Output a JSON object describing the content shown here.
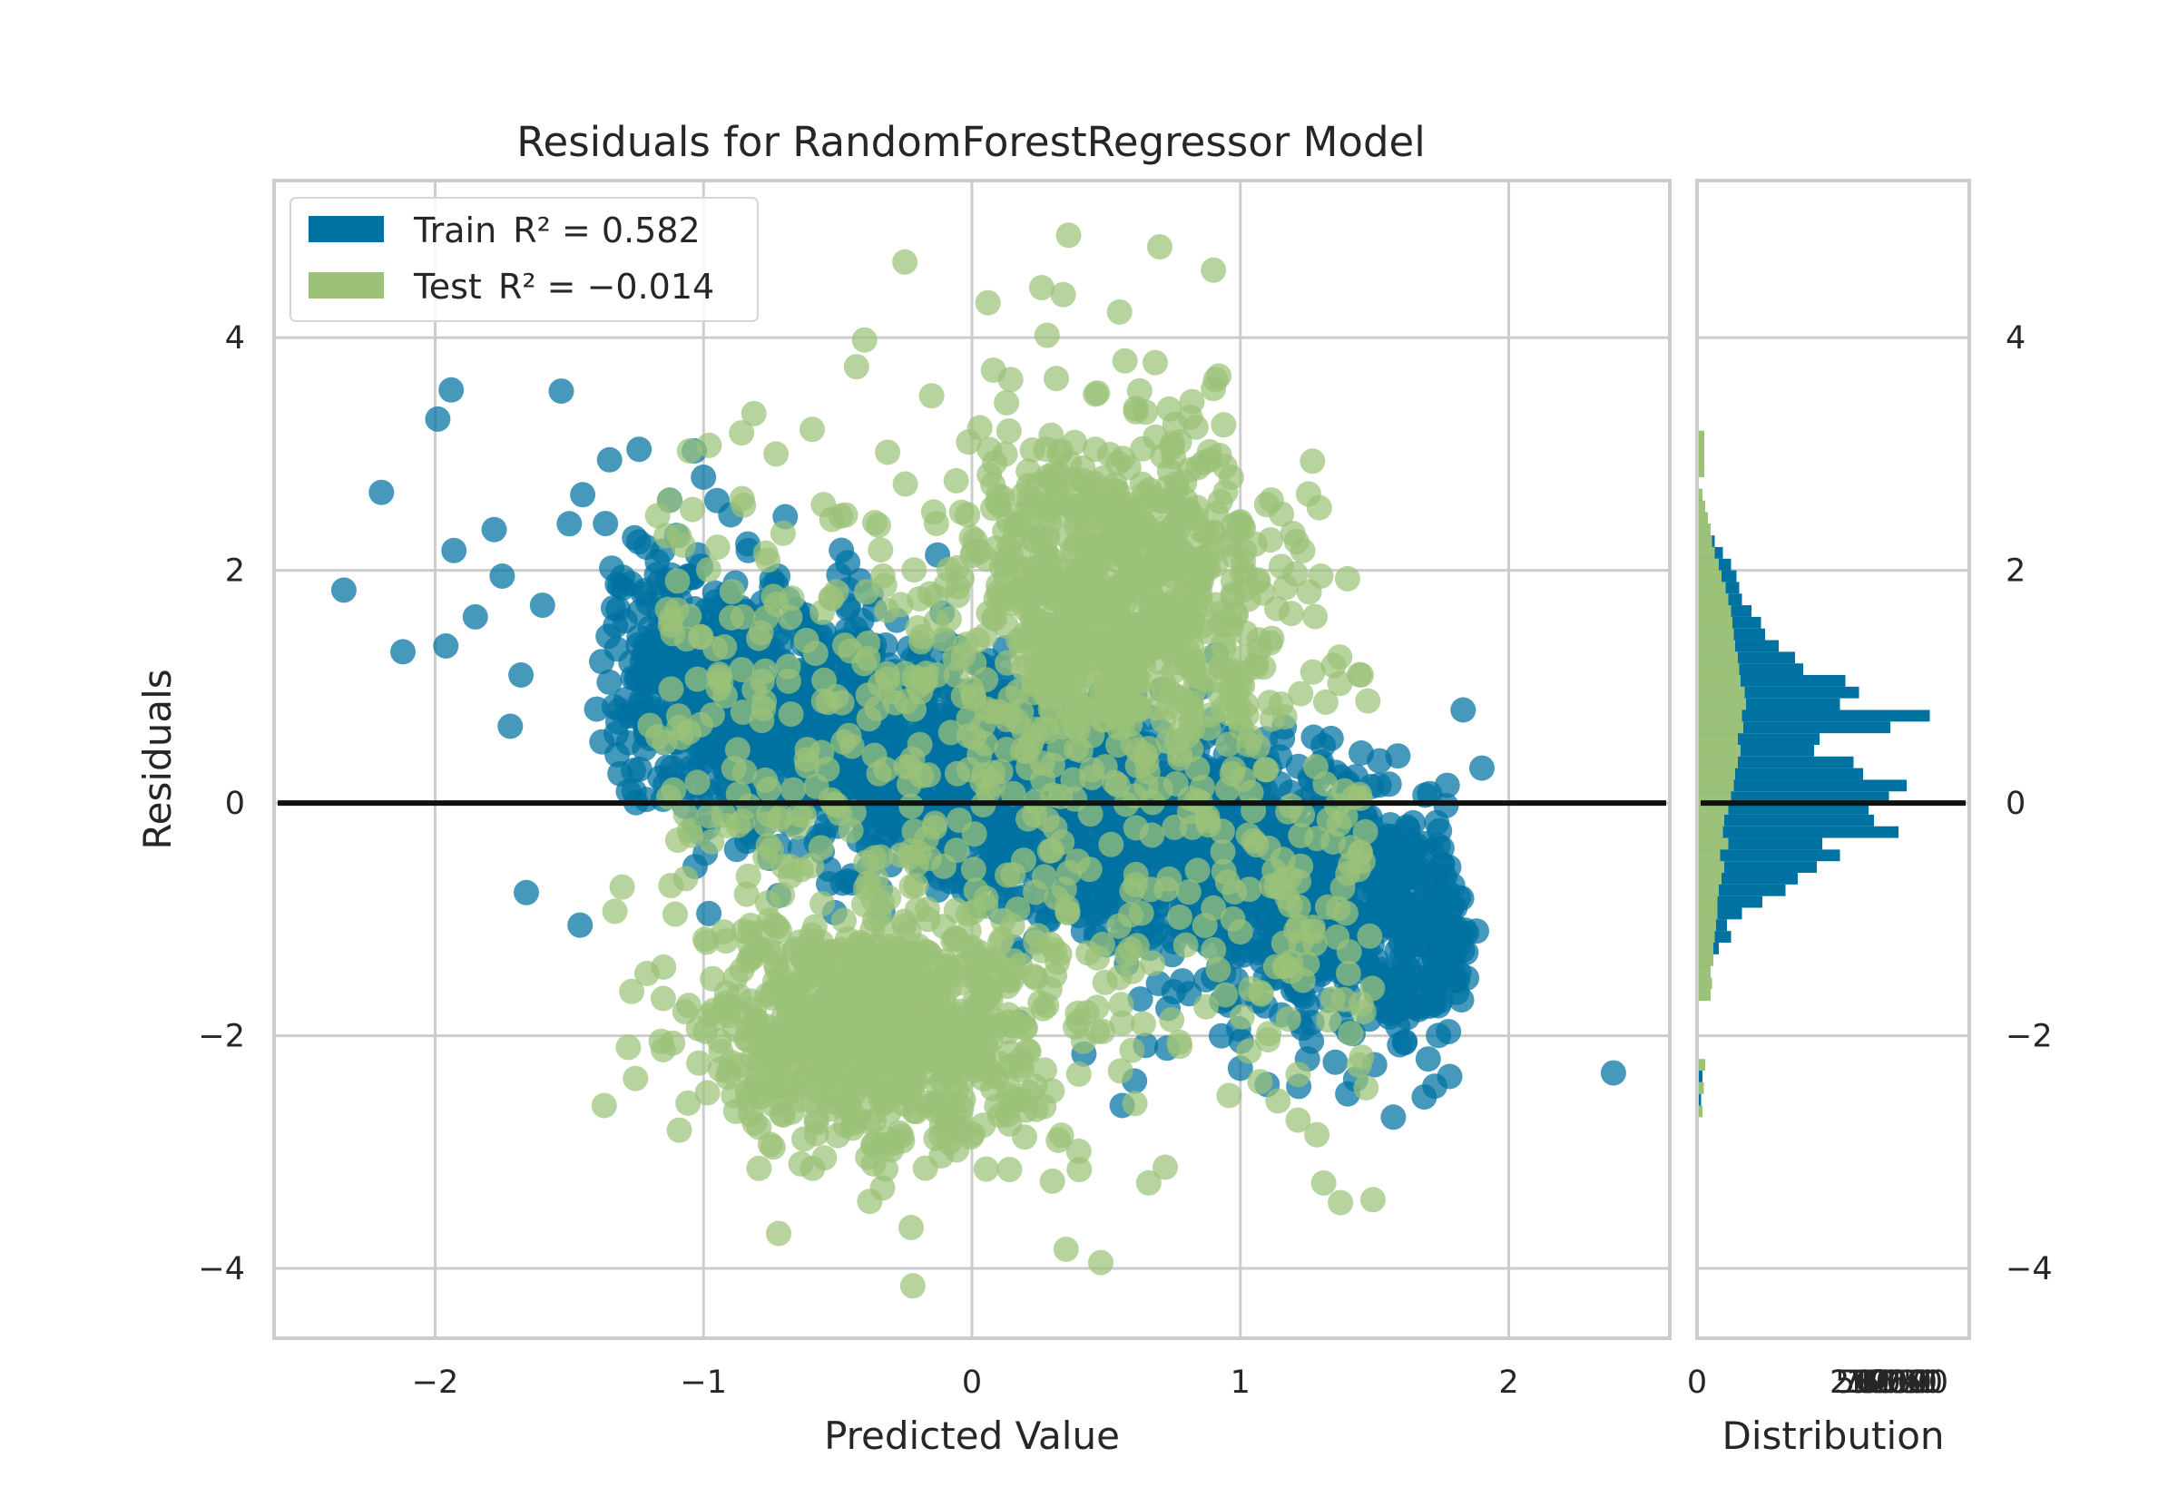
{
  "chart_data": {
    "type": "scatter",
    "title": "Residuals for RandomForestRegressor Model",
    "xlabel": "Predicted Value",
    "ylabel": "Residuals",
    "xlim": [
      -2.6,
      2.6
    ],
    "ylim": [
      -4.6,
      5.35
    ],
    "x_ticks": [
      "−2",
      "−1",
      "0",
      "1",
      "2"
    ],
    "y_ticks": [
      "−4",
      "−2",
      "0",
      "2",
      "4"
    ],
    "grid": true,
    "zero_line": 0,
    "legend_position": "upper-left",
    "series": [
      {
        "name": "Train",
        "legend_prefix": "Train",
        "r2_label": "R² = 0.582",
        "color": "#0072a2",
        "note": "dense point cloud trending from upper-left to lower-right",
        "points": [
          [
            -2.34,
            1.83
          ],
          [
            -2.2,
            2.67
          ],
          [
            -2.12,
            1.3
          ],
          [
            -1.99,
            3.3
          ],
          [
            -1.96,
            1.35
          ],
          [
            -1.94,
            3.55
          ],
          [
            -1.93,
            2.17
          ],
          [
            -1.85,
            1.6
          ],
          [
            -1.78,
            2.35
          ],
          [
            -1.75,
            1.95
          ],
          [
            -1.72,
            0.66
          ],
          [
            -1.68,
            1.1
          ],
          [
            -1.66,
            -0.77
          ],
          [
            -1.6,
            1.7
          ],
          [
            -1.53,
            3.54
          ],
          [
            -1.5,
            2.4
          ],
          [
            -1.46,
            -1.05
          ],
          [
            -1.45,
            2.65
          ],
          [
            -1.35,
            2.95
          ],
          [
            -1.28,
            0.1
          ],
          [
            -1.24,
            3.04
          ],
          [
            -1.1,
            2.3
          ],
          [
            -1.0,
            2.8
          ],
          [
            -0.98,
            -0.95
          ],
          [
            -0.95,
            2.6
          ],
          [
            -0.5,
            -0.2
          ],
          [
            0.5,
            -0.55
          ],
          [
            0.56,
            -2.6
          ],
          [
            0.9,
            -1.5
          ],
          [
            1.0,
            -2.28
          ],
          [
            1.1,
            -2.42
          ],
          [
            1.25,
            -2.2
          ],
          [
            1.4,
            -2.5
          ],
          [
            1.5,
            -2.25
          ],
          [
            1.57,
            -2.7
          ],
          [
            1.7,
            -2.2
          ],
          [
            1.78,
            -2.35
          ],
          [
            1.83,
            0.8
          ],
          [
            1.88,
            -1.1
          ],
          [
            1.9,
            0.3
          ],
          [
            2.39,
            -2.32
          ]
        ]
      },
      {
        "name": "Test",
        "legend_prefix": "Test",
        "r2_label": "R² = −0.014",
        "color": "#9bc278",
        "note": "point cloud with upper cluster near x≈0.5, y≈2 and lower cluster near x≈-0.4, y≈-2",
        "points": [
          [
            -1.37,
            -2.6
          ],
          [
            -1.33,
            -0.93
          ],
          [
            -1.28,
            -2.1
          ],
          [
            -1.15,
            -2.12
          ],
          [
            -1.15,
            -1.68
          ],
          [
            -1.1,
            1.66
          ],
          [
            -0.88,
            -2.65
          ],
          [
            -0.85,
            -1.1
          ],
          [
            -0.72,
            -3.7
          ],
          [
            -0.73,
            3.0
          ],
          [
            -0.55,
            -3.05
          ],
          [
            -0.43,
            3.75
          ],
          [
            -0.4,
            3.98
          ],
          [
            -0.3,
            -2.98
          ],
          [
            -0.25,
            4.65
          ],
          [
            -0.22,
            -4.15
          ],
          [
            -0.15,
            3.5
          ],
          [
            0.08,
            3.72
          ],
          [
            0.06,
            4.3
          ],
          [
            0.14,
            -3.15
          ],
          [
            0.26,
            4.43
          ],
          [
            0.3,
            -3.25
          ],
          [
            0.28,
            4.02
          ],
          [
            0.34,
            4.37
          ],
          [
            0.36,
            4.88
          ],
          [
            0.4,
            -3.15
          ],
          [
            0.48,
            -3.95
          ],
          [
            0.55,
            4.22
          ],
          [
            0.57,
            3.8
          ],
          [
            0.7,
            4.78
          ],
          [
            0.72,
            -3.13
          ],
          [
            0.9,
            4.58
          ],
          [
            0.92,
            3.67
          ],
          [
            1.3,
            1.95
          ],
          [
            1.45,
            1.1
          ]
        ]
      }
    ],
    "histogram": {
      "xlabel": "Distribution",
      "x_ticks": [
        "0",
        "250",
        "500",
        "750",
        "1000",
        "1250",
        "1500",
        "1750",
        "2000"
      ],
      "x_tick_label_visible_start": "0",
      "x_tick_label_visible_end": "2000",
      "bins_start": -2.7,
      "bin_width": 0.1,
      "train_counts": [
        0,
        30,
        0,
        40,
        0,
        0,
        0,
        0,
        0,
        0,
        30,
        80,
        90,
        110,
        160,
        250,
        220,
        330,
        480,
        650,
        740,
        880,
        1050,
        920,
        1480,
        1300,
        1260,
        1410,
        1540,
        1220,
        1150,
        860,
        900,
        1420,
        1710,
        1050,
        1190,
        1090,
        780,
        720,
        600,
        500,
        470,
        400,
        330,
        310,
        290,
        250,
        190,
        130,
        100,
        70,
        40,
        30
      ],
      "test_counts": [
        40,
        0,
        50,
        0,
        60,
        0,
        0,
        0,
        0,
        0,
        100,
        110,
        100,
        120,
        120,
        130,
        140,
        150,
        150,
        160,
        180,
        200,
        170,
        230,
        190,
        200,
        230,
        250,
        270,
        280,
        300,
        320,
        300,
        340,
        330,
        360,
        350,
        320,
        310,
        300,
        280,
        270,
        260,
        250,
        230,
        210,
        180,
        160,
        130,
        110,
        100,
        80,
        60,
        40
      ]
    }
  }
}
